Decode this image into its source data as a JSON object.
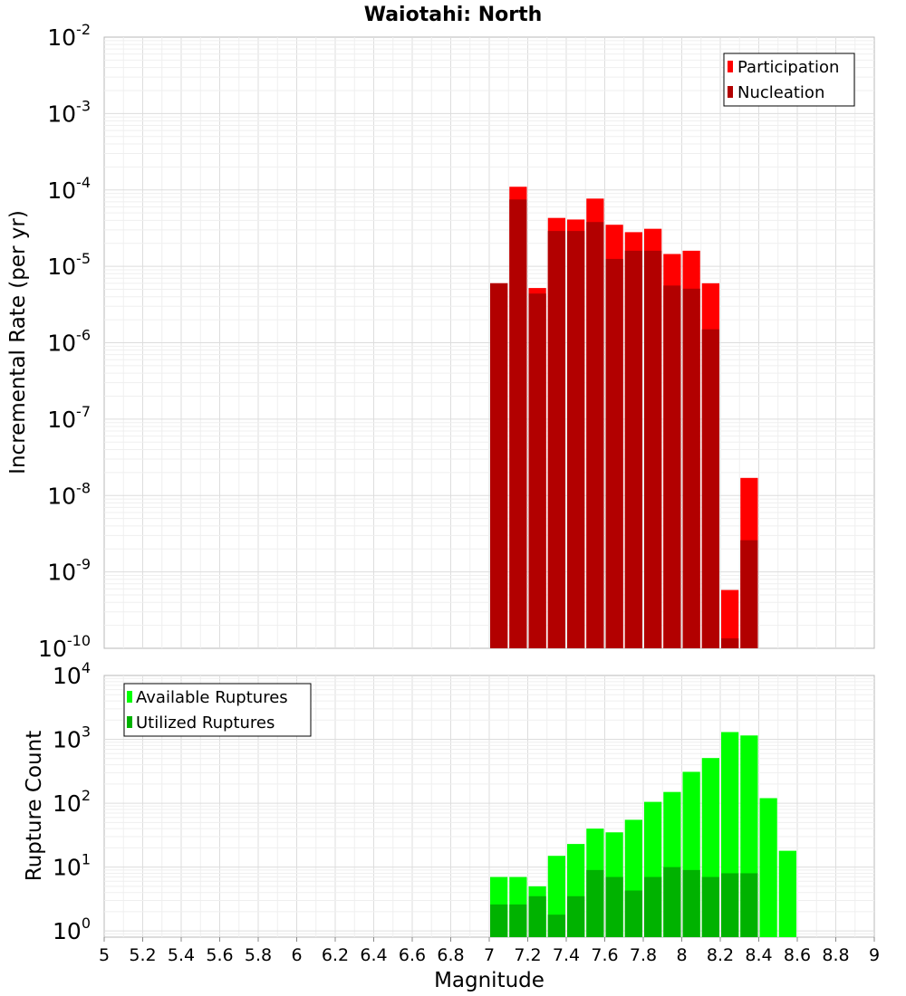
{
  "chart_data": [
    {
      "type": "bar",
      "title": "Waiotahi: North",
      "xlabel": "",
      "ylabel": "Incremental Rate (per yr)",
      "yscale": "log",
      "ylim": [
        1e-10,
        0.01
      ],
      "xlim": [
        5,
        9
      ],
      "bin_width": 0.1,
      "grid": true,
      "legend_position": "top-right",
      "x": [
        7.05,
        7.15,
        7.25,
        7.35,
        7.45,
        7.55,
        7.65,
        7.75,
        7.85,
        7.95,
        8.05,
        8.15,
        8.25,
        8.35
      ],
      "series": [
        {
          "name": "Participation",
          "color": "#ff0000",
          "values": [
            6e-06,
            0.00011,
            5.2e-06,
            4.3e-05,
            4.1e-05,
            7.7e-05,
            3.5e-05,
            2.8e-05,
            3.1e-05,
            1.45e-05,
            1.6e-05,
            6e-06,
            5.8e-10,
            1.7e-08
          ]
        },
        {
          "name": "Nucleation",
          "color": "#b20000",
          "values": [
            6e-06,
            7.5e-05,
            4.4e-06,
            2.9e-05,
            2.9e-05,
            3.8e-05,
            1.25e-05,
            1.6e-05,
            1.6e-05,
            5.6e-06,
            5.1e-06,
            1.5e-06,
            1.35e-10,
            2.6e-09
          ]
        }
      ]
    },
    {
      "type": "bar",
      "title": "",
      "xlabel": "Magnitude",
      "ylabel": "Rupture Count",
      "yscale": "log",
      "ylim": [
        0.8,
        10000
      ],
      "xlim": [
        5,
        9
      ],
      "bin_width": 0.1,
      "grid": true,
      "legend_position": "top-left",
      "x": [
        7.05,
        7.15,
        7.25,
        7.35,
        7.45,
        7.55,
        7.65,
        7.75,
        7.85,
        7.95,
        8.05,
        8.15,
        8.25,
        8.35,
        8.45,
        8.55
      ],
      "series": [
        {
          "name": "Available Ruptures",
          "color": "#00ff00",
          "values": [
            7,
            7,
            5,
            15,
            23,
            40,
            35,
            55,
            105,
            150,
            310,
            510,
            1300,
            1150,
            120,
            18
          ]
        },
        {
          "name": "Utilized Ruptures",
          "color": "#00b200",
          "values": [
            2.6,
            2.6,
            3.5,
            1.8,
            3.5,
            9,
            7,
            4.3,
            7,
            10,
            9,
            7,
            8,
            8,
            null,
            null
          ]
        }
      ],
      "x_ticks": [
        "5",
        "5.2",
        "5.4",
        "5.6",
        "5.8",
        "6",
        "6.2",
        "6.4",
        "6.6",
        "6.8",
        "7",
        "7.2",
        "7.4",
        "7.6",
        "7.8",
        "8",
        "8.2",
        "8.4",
        "8.6",
        "8.8",
        "9"
      ]
    }
  ]
}
